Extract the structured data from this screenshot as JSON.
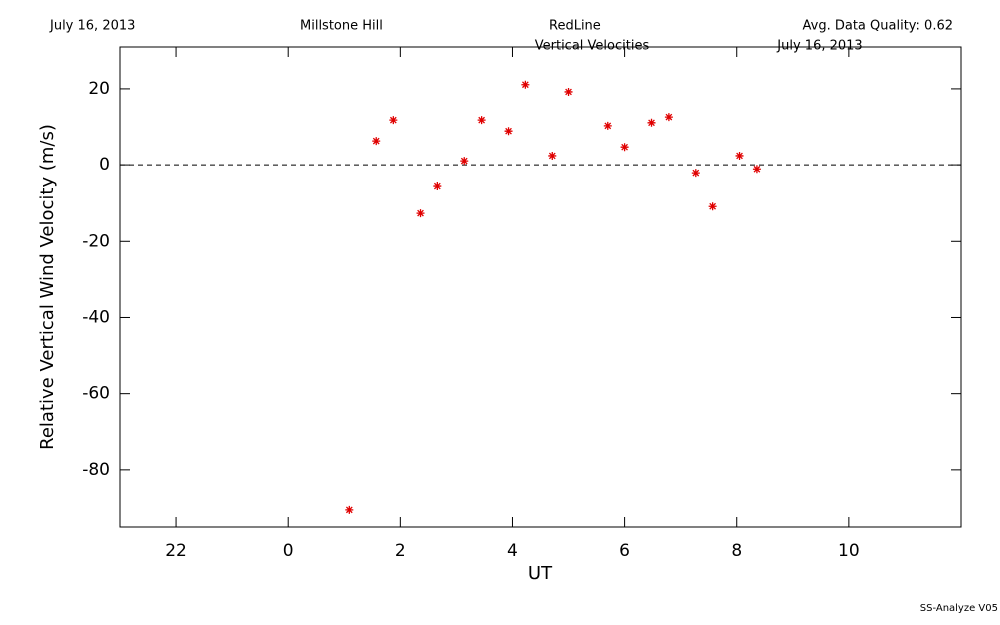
{
  "chart_data": {
    "type": "scatter",
    "header": [
      "July 16, 2013",
      "Millstone Hill",
      "RedLine",
      "Avg. Data Quality: 0.62"
    ],
    "title": "Vertical Velocities",
    "subtitle": "July 16, 2013",
    "ylabel": "Relative Vertical Wind Velocity (m/s)",
    "xlabel": "UT",
    "footer": "SS-Analyze V05",
    "xlim": [
      -3,
      12
    ],
    "ylim": [
      -95,
      31
    ],
    "xticks": [
      {
        "value": -2,
        "label": "22"
      },
      0,
      2,
      4,
      6,
      8,
      10
    ],
    "yticks": [
      -80,
      -60,
      -40,
      -20,
      0,
      20
    ],
    "reference_line": 0,
    "color": "#e00000",
    "x": [
      1.09,
      1.57,
      1.875,
      2.36,
      2.66,
      3.14,
      3.45,
      3.93,
      4.23,
      4.71,
      5.0,
      5.7,
      6.0,
      6.48,
      6.79,
      7.27,
      7.57,
      8.05,
      8.36
    ],
    "values": [
      -90.5,
      6.3,
      11.8,
      -12.6,
      -5.5,
      1.05,
      11.8,
      8.9,
      21.1,
      2.4,
      19.2,
      10.3,
      4.7,
      11.1,
      12.6,
      -2.1,
      -10.8,
      2.4,
      -1.1
    ]
  }
}
